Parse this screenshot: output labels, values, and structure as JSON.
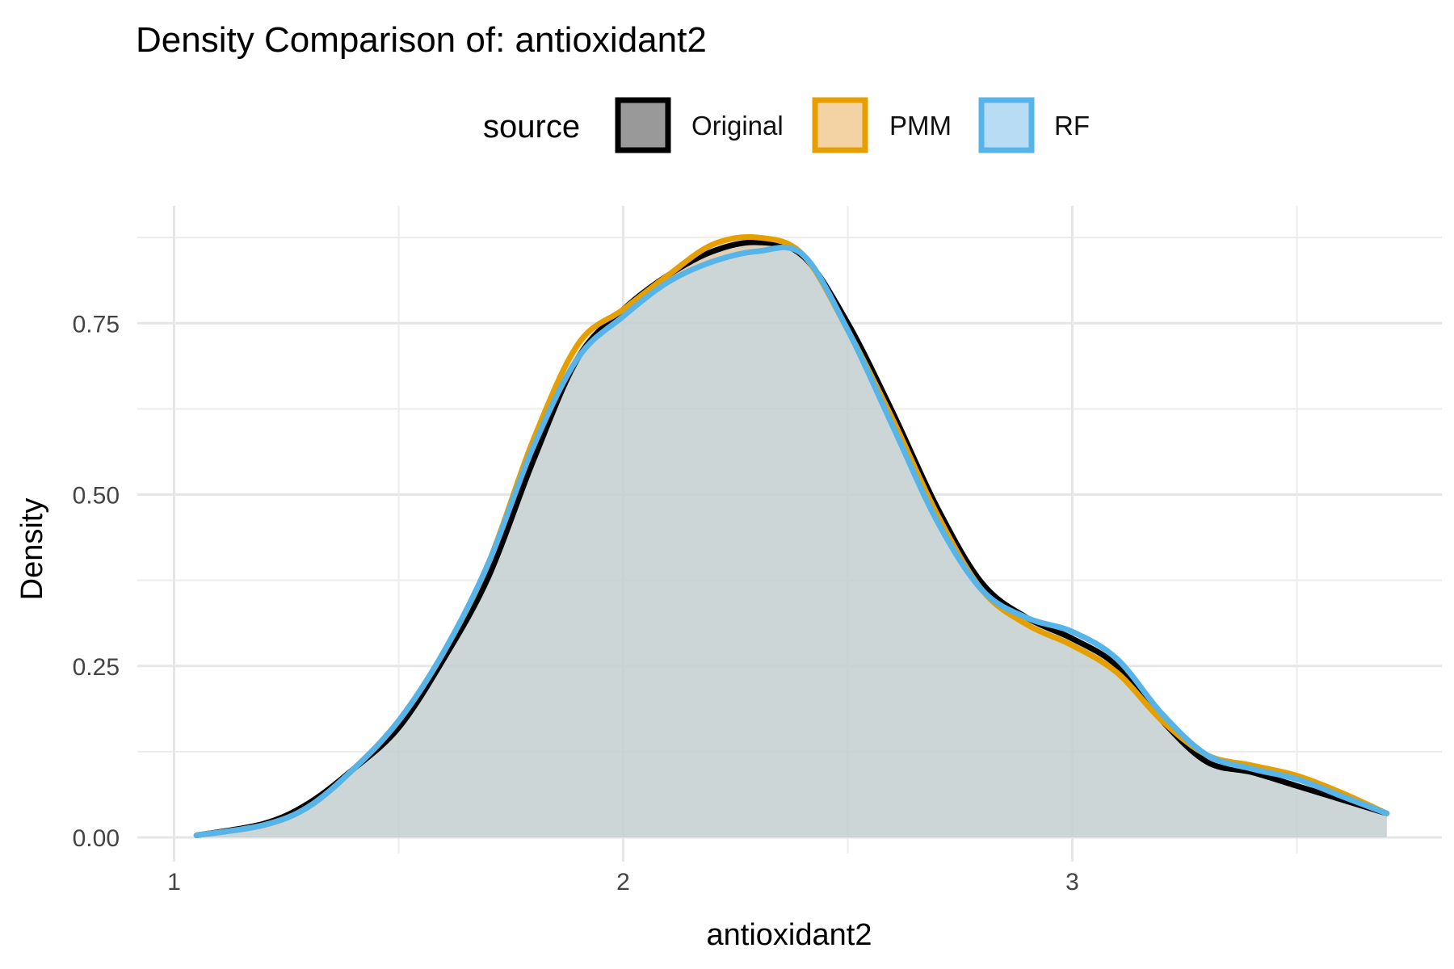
{
  "chart_data": {
    "type": "area",
    "title": "Density Comparison of: antioxidant2",
    "xlabel": "antioxidant2",
    "ylabel": "Density",
    "xlim": [
      1,
      3.7
    ],
    "ylim": [
      0,
      0.9
    ],
    "x_ticks": [
      1,
      2,
      3
    ],
    "x_tick_labels": [
      "1",
      "2",
      "3"
    ],
    "y_ticks": [
      0,
      0.25,
      0.5,
      0.75
    ],
    "y_tick_labels": [
      "0.00",
      "0.25",
      "0.50",
      "0.75"
    ],
    "grid": true,
    "legend": {
      "title": "source",
      "position": "top"
    },
    "x": [
      1.05,
      1.2,
      1.3,
      1.4,
      1.5,
      1.6,
      1.7,
      1.8,
      1.9,
      2.0,
      2.1,
      2.2,
      2.3,
      2.4,
      2.5,
      2.6,
      2.7,
      2.8,
      2.9,
      3.0,
      3.1,
      3.2,
      3.3,
      3.4,
      3.5,
      3.6,
      3.7
    ],
    "series": [
      {
        "name": "Original",
        "fill": "#999999",
        "stroke": "#000000",
        "values": [
          0.003,
          0.02,
          0.05,
          0.1,
          0.16,
          0.26,
          0.38,
          0.55,
          0.7,
          0.77,
          0.82,
          0.855,
          0.868,
          0.848,
          0.75,
          0.62,
          0.48,
          0.37,
          0.32,
          0.29,
          0.25,
          0.17,
          0.11,
          0.095,
          0.075,
          0.055,
          0.035
        ]
      },
      {
        "name": "PMM",
        "fill": "#f3d3a3",
        "stroke": "#e69f00",
        "values": [
          0.003,
          0.018,
          0.045,
          0.1,
          0.17,
          0.27,
          0.4,
          0.58,
          0.72,
          0.77,
          0.82,
          0.865,
          0.875,
          0.85,
          0.74,
          0.61,
          0.47,
          0.36,
          0.31,
          0.28,
          0.24,
          0.17,
          0.12,
          0.105,
          0.09,
          0.065,
          0.035
        ]
      },
      {
        "name": "RF",
        "fill": "#b8dcf4",
        "stroke": "#56b4e9",
        "values": [
          0.003,
          0.018,
          0.045,
          0.1,
          0.17,
          0.27,
          0.4,
          0.57,
          0.7,
          0.76,
          0.81,
          0.84,
          0.855,
          0.85,
          0.74,
          0.6,
          0.46,
          0.36,
          0.32,
          0.3,
          0.26,
          0.18,
          0.12,
          0.1,
          0.085,
          0.06,
          0.035
        ]
      }
    ]
  }
}
